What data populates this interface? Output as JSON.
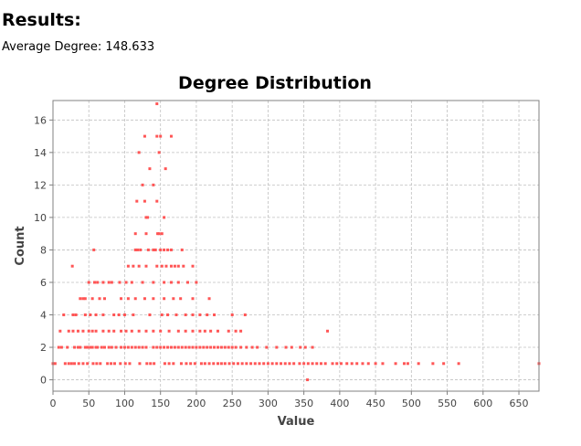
{
  "results": {
    "heading": "Results:",
    "avg_label": "Average Degree:",
    "avg_value": "148.633"
  },
  "colors": {
    "point": "#ff5555",
    "grid": "#c0c0c0",
    "frame": "#808080"
  },
  "chart_data": {
    "type": "scatter",
    "title": "Degree Distribution",
    "xlabel": "Value",
    "ylabel": "Count",
    "xlim": [
      0,
      678
    ],
    "ylim": [
      -0.7,
      17.2
    ],
    "xticks": [
      0,
      50,
      100,
      150,
      200,
      250,
      300,
      350,
      400,
      450,
      500,
      550,
      600,
      650
    ],
    "yticks": [
      0,
      2,
      4,
      6,
      8,
      10,
      12,
      14,
      16
    ],
    "grid": true,
    "legend": "none",
    "points": [
      [
        145,
        17
      ],
      [
        128,
        15
      ],
      [
        145,
        15
      ],
      [
        150,
        15
      ],
      [
        165,
        15
      ],
      [
        120,
        14
      ],
      [
        148,
        14
      ],
      [
        135,
        13
      ],
      [
        157,
        13
      ],
      [
        125,
        12
      ],
      [
        140,
        12
      ],
      [
        117,
        11
      ],
      [
        128,
        11
      ],
      [
        145,
        11
      ],
      [
        155,
        10
      ],
      [
        130,
        10
      ],
      [
        132,
        10
      ],
      [
        115,
        9
      ],
      [
        130,
        9
      ],
      [
        146,
        9
      ],
      [
        148,
        9
      ],
      [
        152,
        9
      ],
      [
        57,
        8
      ],
      [
        115,
        8
      ],
      [
        118,
        8
      ],
      [
        122,
        8
      ],
      [
        133,
        8
      ],
      [
        140,
        8
      ],
      [
        143,
        8
      ],
      [
        150,
        8
      ],
      [
        155,
        8
      ],
      [
        160,
        8
      ],
      [
        165,
        8
      ],
      [
        180,
        8
      ],
      [
        27,
        7
      ],
      [
        105,
        7
      ],
      [
        112,
        7
      ],
      [
        120,
        7
      ],
      [
        130,
        7
      ],
      [
        145,
        7
      ],
      [
        152,
        7
      ],
      [
        158,
        7
      ],
      [
        165,
        7
      ],
      [
        170,
        7
      ],
      [
        175,
        7
      ],
      [
        182,
        7
      ],
      [
        195,
        7
      ],
      [
        50,
        6
      ],
      [
        58,
        6
      ],
      [
        62,
        6
      ],
      [
        70,
        6
      ],
      [
        78,
        6
      ],
      [
        82,
        6
      ],
      [
        93,
        6
      ],
      [
        102,
        6
      ],
      [
        110,
        6
      ],
      [
        125,
        6
      ],
      [
        140,
        6
      ],
      [
        155,
        6
      ],
      [
        165,
        6
      ],
      [
        175,
        6
      ],
      [
        188,
        6
      ],
      [
        200,
        6
      ],
      [
        38,
        5
      ],
      [
        42,
        5
      ],
      [
        45,
        5
      ],
      [
        55,
        5
      ],
      [
        65,
        5
      ],
      [
        72,
        5
      ],
      [
        95,
        5
      ],
      [
        105,
        5
      ],
      [
        115,
        5
      ],
      [
        128,
        5
      ],
      [
        140,
        5
      ],
      [
        155,
        5
      ],
      [
        168,
        5
      ],
      [
        178,
        5
      ],
      [
        195,
        5
      ],
      [
        218,
        5
      ],
      [
        15,
        4
      ],
      [
        28,
        4
      ],
      [
        32,
        4
      ],
      [
        45,
        4
      ],
      [
        52,
        4
      ],
      [
        60,
        4
      ],
      [
        70,
        4
      ],
      [
        85,
        4
      ],
      [
        92,
        4
      ],
      [
        100,
        4
      ],
      [
        112,
        4
      ],
      [
        135,
        4
      ],
      [
        152,
        4
      ],
      [
        160,
        4
      ],
      [
        172,
        4
      ],
      [
        185,
        4
      ],
      [
        195,
        4
      ],
      [
        205,
        4
      ],
      [
        215,
        4
      ],
      [
        225,
        4
      ],
      [
        250,
        4
      ],
      [
        268,
        4
      ],
      [
        10,
        3
      ],
      [
        22,
        3
      ],
      [
        28,
        3
      ],
      [
        35,
        3
      ],
      [
        42,
        3
      ],
      [
        50,
        3
      ],
      [
        55,
        3
      ],
      [
        60,
        3
      ],
      [
        70,
        3
      ],
      [
        78,
        3
      ],
      [
        85,
        3
      ],
      [
        95,
        3
      ],
      [
        102,
        3
      ],
      [
        110,
        3
      ],
      [
        120,
        3
      ],
      [
        130,
        3
      ],
      [
        140,
        3
      ],
      [
        150,
        3
      ],
      [
        162,
        3
      ],
      [
        175,
        3
      ],
      [
        185,
        3
      ],
      [
        195,
        3
      ],
      [
        205,
        3
      ],
      [
        212,
        3
      ],
      [
        220,
        3
      ],
      [
        230,
        3
      ],
      [
        245,
        3
      ],
      [
        255,
        3
      ],
      [
        262,
        3
      ],
      [
        383,
        3
      ],
      [
        8,
        2
      ],
      [
        12,
        2
      ],
      [
        20,
        2
      ],
      [
        30,
        2
      ],
      [
        35,
        2
      ],
      [
        38,
        2
      ],
      [
        45,
        2
      ],
      [
        48,
        2
      ],
      [
        52,
        2
      ],
      [
        55,
        2
      ],
      [
        60,
        2
      ],
      [
        62,
        2
      ],
      [
        68,
        2
      ],
      [
        72,
        2
      ],
      [
        78,
        2
      ],
      [
        82,
        2
      ],
      [
        88,
        2
      ],
      [
        95,
        2
      ],
      [
        100,
        2
      ],
      [
        105,
        2
      ],
      [
        110,
        2
      ],
      [
        115,
        2
      ],
      [
        120,
        2
      ],
      [
        125,
        2
      ],
      [
        130,
        2
      ],
      [
        140,
        2
      ],
      [
        145,
        2
      ],
      [
        150,
        2
      ],
      [
        155,
        2
      ],
      [
        160,
        2
      ],
      [
        165,
        2
      ],
      [
        170,
        2
      ],
      [
        175,
        2
      ],
      [
        180,
        2
      ],
      [
        185,
        2
      ],
      [
        190,
        2
      ],
      [
        195,
        2
      ],
      [
        200,
        2
      ],
      [
        205,
        2
      ],
      [
        210,
        2
      ],
      [
        215,
        2
      ],
      [
        220,
        2
      ],
      [
        225,
        2
      ],
      [
        230,
        2
      ],
      [
        235,
        2
      ],
      [
        240,
        2
      ],
      [
        245,
        2
      ],
      [
        250,
        2
      ],
      [
        255,
        2
      ],
      [
        262,
        2
      ],
      [
        270,
        2
      ],
      [
        278,
        2
      ],
      [
        285,
        2
      ],
      [
        298,
        2
      ],
      [
        312,
        2
      ],
      [
        325,
        2
      ],
      [
        333,
        2
      ],
      [
        345,
        2
      ],
      [
        352,
        2
      ],
      [
        362,
        2
      ],
      [
        0,
        1
      ],
      [
        3,
        1
      ],
      [
        17,
        1
      ],
      [
        22,
        1
      ],
      [
        26,
        1
      ],
      [
        30,
        1
      ],
      [
        36,
        1
      ],
      [
        42,
        1
      ],
      [
        48,
        1
      ],
      [
        56,
        1
      ],
      [
        61,
        1
      ],
      [
        66,
        1
      ],
      [
        76,
        1
      ],
      [
        81,
        1
      ],
      [
        86,
        1
      ],
      [
        94,
        1
      ],
      [
        101,
        1
      ],
      [
        107,
        1
      ],
      [
        121,
        1
      ],
      [
        131,
        1
      ],
      [
        136,
        1
      ],
      [
        141,
        1
      ],
      [
        156,
        1
      ],
      [
        162,
        1
      ],
      [
        168,
        1
      ],
      [
        179,
        1
      ],
      [
        186,
        1
      ],
      [
        192,
        1
      ],
      [
        198,
        1
      ],
      [
        207,
        1
      ],
      [
        212,
        1
      ],
      [
        218,
        1
      ],
      [
        224,
        1
      ],
      [
        230,
        1
      ],
      [
        235,
        1
      ],
      [
        240,
        1
      ],
      [
        246,
        1
      ],
      [
        252,
        1
      ],
      [
        258,
        1
      ],
      [
        264,
        1
      ],
      [
        270,
        1
      ],
      [
        276,
        1
      ],
      [
        282,
        1
      ],
      [
        288,
        1
      ],
      [
        294,
        1
      ],
      [
        300,
        1
      ],
      [
        306,
        1
      ],
      [
        312,
        1
      ],
      [
        318,
        1
      ],
      [
        324,
        1
      ],
      [
        330,
        1
      ],
      [
        336,
        1
      ],
      [
        344,
        1
      ],
      [
        350,
        1
      ],
      [
        356,
        1
      ],
      [
        362,
        1
      ],
      [
        368,
        1
      ],
      [
        374,
        1
      ],
      [
        380,
        1
      ],
      [
        390,
        1
      ],
      [
        396,
        1
      ],
      [
        402,
        1
      ],
      [
        410,
        1
      ],
      [
        417,
        1
      ],
      [
        424,
        1
      ],
      [
        432,
        1
      ],
      [
        440,
        1
      ],
      [
        450,
        1
      ],
      [
        460,
        1
      ],
      [
        478,
        1
      ],
      [
        490,
        1
      ],
      [
        495,
        1
      ],
      [
        510,
        1
      ],
      [
        530,
        1
      ],
      [
        545,
        1
      ],
      [
        566,
        1
      ],
      [
        678,
        1
      ],
      [
        355,
        0
      ]
    ]
  }
}
